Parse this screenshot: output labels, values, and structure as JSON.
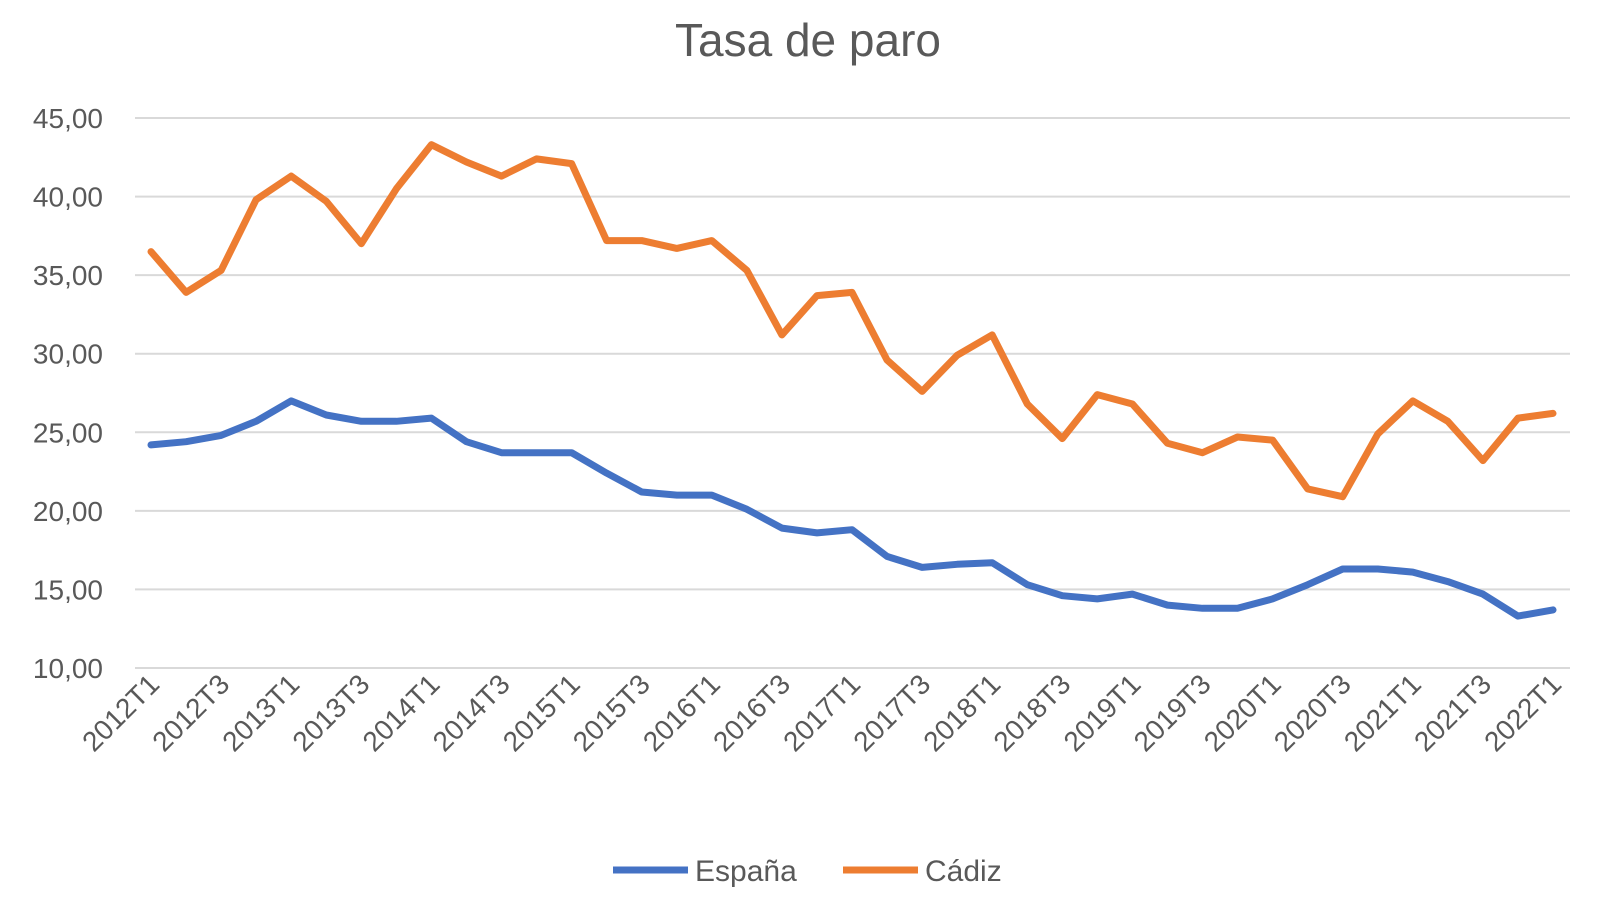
{
  "chart_data": {
    "type": "line",
    "title": "Tasa de paro",
    "xlabel": "",
    "ylabel": "",
    "ylim": [
      10,
      45
    ],
    "yticks": [
      "10,00",
      "15,00",
      "20,00",
      "25,00",
      "30,00",
      "35,00",
      "40,00",
      "45,00"
    ],
    "grid": true,
    "legend_placement": "bottom",
    "x": [
      "2012T1",
      "2012T2",
      "2012T3",
      "2012T4",
      "2013T1",
      "2013T2",
      "2013T3",
      "2013T4",
      "2014T1",
      "2014T2",
      "2014T3",
      "2014T4",
      "2015T1",
      "2015T2",
      "2015T3",
      "2015T4",
      "2016T1",
      "2016T2",
      "2016T3",
      "2016T4",
      "2017T1",
      "2017T2",
      "2017T3",
      "2017T4",
      "2018T1",
      "2018T2",
      "2018T3",
      "2018T4",
      "2019T1",
      "2019T2",
      "2019T3",
      "2019T4",
      "2020T1",
      "2020T2",
      "2020T3",
      "2020T4",
      "2021T1",
      "2021T2",
      "2021T3",
      "2021T4",
      "2022T1"
    ],
    "xticks_shown": [
      "2012T1",
      "2012T3",
      "2013T1",
      "2013T3",
      "2014T1",
      "2014T3",
      "2015T1",
      "2015T3",
      "2016T1",
      "2016T3",
      "2017T1",
      "2017T3",
      "2018T1",
      "2018T3",
      "2019T1",
      "2019T3",
      "2020T1",
      "2020T3",
      "2021T1",
      "2021T3",
      "2022T1"
    ],
    "series": [
      {
        "name": "España",
        "color": "#4472c4",
        "values": [
          24.2,
          24.4,
          24.8,
          25.7,
          27.0,
          26.1,
          25.7,
          25.7,
          25.9,
          24.4,
          23.7,
          23.7,
          23.7,
          22.4,
          21.2,
          21.0,
          21.0,
          20.1,
          18.9,
          18.6,
          18.8,
          17.1,
          16.4,
          16.6,
          16.7,
          15.3,
          14.6,
          14.4,
          14.7,
          14.0,
          13.8,
          13.8,
          14.4,
          15.3,
          16.3,
          16.3,
          16.1,
          15.5,
          14.7,
          13.3,
          13.7
        ]
      },
      {
        "name": "Cádiz",
        "color": "#ed7d31",
        "values": [
          36.5,
          33.9,
          35.3,
          39.8,
          41.3,
          39.7,
          37.0,
          40.5,
          43.3,
          42.2,
          41.3,
          42.4,
          42.1,
          37.2,
          37.2,
          36.7,
          37.2,
          35.3,
          31.2,
          33.7,
          33.9,
          29.6,
          27.6,
          29.9,
          31.2,
          26.8,
          24.6,
          27.4,
          26.8,
          24.3,
          23.7,
          24.7,
          24.5,
          21.4,
          20.9,
          24.9,
          27.0,
          25.7,
          23.2,
          25.9,
          26.2
        ]
      }
    ]
  }
}
